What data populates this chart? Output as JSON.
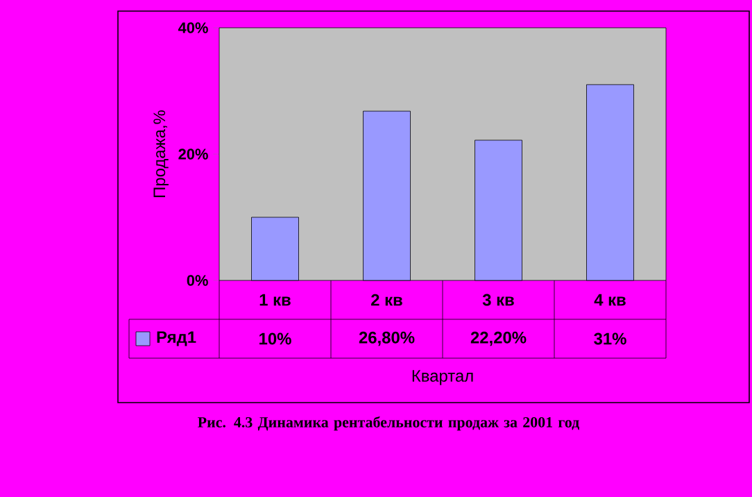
{
  "chart_data": {
    "type": "bar",
    "categories": [
      "1 кв",
      "2 кв",
      "3 кв",
      "4 кв"
    ],
    "series": [
      {
        "name": "Ряд1",
        "color": "#9999ff",
        "values": [
          10,
          26.8,
          22.2,
          31
        ],
        "value_labels": [
          "10%",
          "26,80%",
          "22,20%",
          "31%"
        ]
      }
    ],
    "xlabel": "Квартал",
    "ylabel": "Продажа,%",
    "ylim": [
      0,
      40
    ],
    "yticks": [
      {
        "value": 0,
        "label": "0%"
      },
      {
        "value": 20,
        "label": "20%"
      },
      {
        "value": 40,
        "label": "40%"
      }
    ],
    "legend": "bottom",
    "grid": false,
    "annotations": [
      "Рис. 4.3 Динамика рентабельности продаж за 2001 год"
    ]
  }
}
